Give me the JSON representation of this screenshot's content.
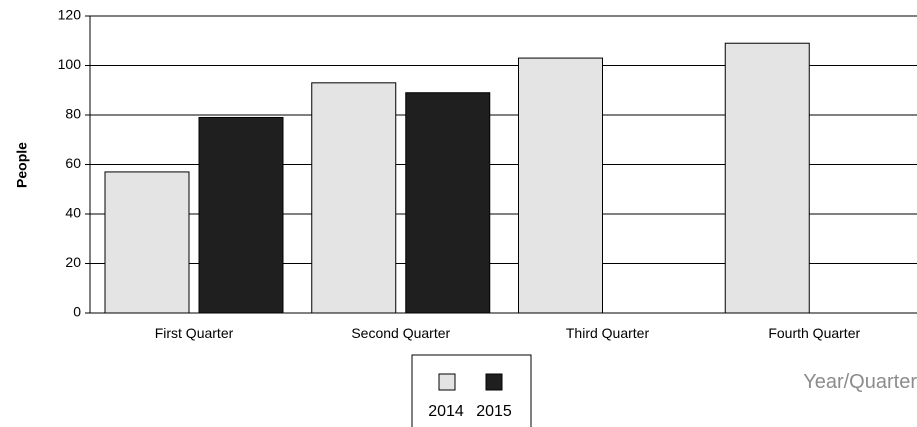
{
  "chart_data": {
    "type": "bar",
    "categories": [
      "First Quarter",
      "Second Quarter",
      "Third Quarter",
      "Fourth Quarter"
    ],
    "series": [
      {
        "name": "2014",
        "values": [
          57,
          93,
          103,
          109
        ],
        "color": "#e4e4e4"
      },
      {
        "name": "2015",
        "values": [
          79,
          89,
          null,
          null
        ],
        "color": "#1f1f1f"
      }
    ],
    "title": "",
    "xlabel": "Year/Quarter",
    "ylabel": "People",
    "ylim": [
      0,
      120
    ],
    "yticks": [
      "0",
      "20",
      "40",
      "60",
      "80",
      "100",
      "120"
    ],
    "grid": true,
    "legend_position": "bottom-center"
  }
}
